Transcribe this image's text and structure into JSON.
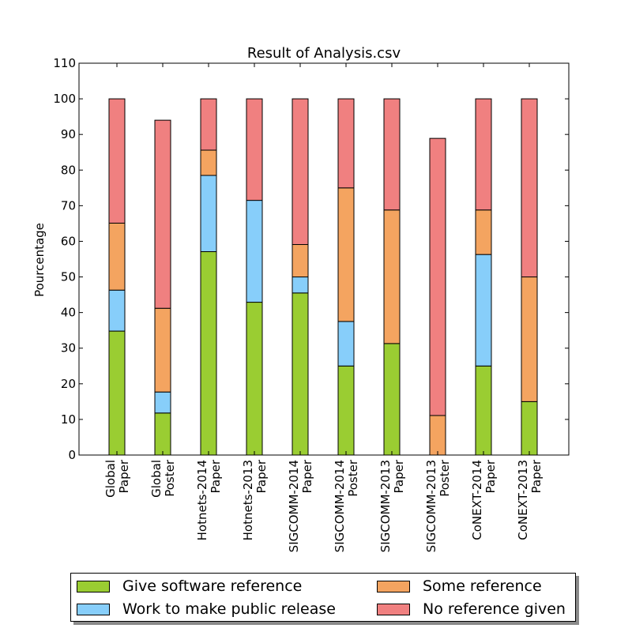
{
  "chart_data": {
    "type": "bar",
    "stacked": true,
    "title": "Result of Analysis.csv",
    "xlabel": "",
    "ylabel": "Pourcentage",
    "ylim": [
      0,
      110
    ],
    "yticks": [
      0,
      10,
      20,
      30,
      40,
      50,
      60,
      70,
      80,
      90,
      100,
      110
    ],
    "grid": false,
    "legend_position": "bottom",
    "categories": [
      [
        "Global",
        "Paper"
      ],
      [
        "Global",
        "Poster"
      ],
      [
        "Hotnets-2014",
        "Paper"
      ],
      [
        "Hotnets-2013",
        "Paper"
      ],
      [
        "SIGCOMM-2014",
        "Paper"
      ],
      [
        "SIGCOMM-2014",
        "Poster"
      ],
      [
        "SIGCOMM-2013",
        "Paper"
      ],
      [
        "SIGCOMM-2013",
        "Poster"
      ],
      [
        "CoNEXT-2014",
        "Paper"
      ],
      [
        "CoNEXT-2013",
        "Paper"
      ]
    ],
    "series": [
      {
        "name": "Give software reference",
        "color": "#9acd32",
        "values": [
          34.8,
          11.8,
          57.1,
          42.9,
          45.5,
          25.0,
          31.3,
          0,
          25.0,
          15.0
        ]
      },
      {
        "name": "Work to make public release",
        "color": "#87cefa",
        "values": [
          11.5,
          5.9,
          21.4,
          28.6,
          4.5,
          12.5,
          0,
          0,
          31.3,
          0
        ]
      },
      {
        "name": "Some reference",
        "color": "#f4a460",
        "values": [
          18.8,
          23.5,
          7.1,
          0,
          9.1,
          37.5,
          37.5,
          11.1,
          12.5,
          35.0
        ]
      },
      {
        "name": "No reference given",
        "color": "#f08080",
        "values": [
          34.9,
          52.8,
          14.4,
          28.5,
          40.9,
          25.0,
          31.2,
          77.8,
          31.2,
          50.0
        ]
      }
    ]
  },
  "legend": [
    {
      "label": "Give software reference",
      "color": "#9acd32"
    },
    {
      "label": "Work to make public release",
      "color": "#87cefa"
    },
    {
      "label": "Some reference",
      "color": "#f4a460"
    },
    {
      "label": "No reference given",
      "color": "#f08080"
    }
  ]
}
